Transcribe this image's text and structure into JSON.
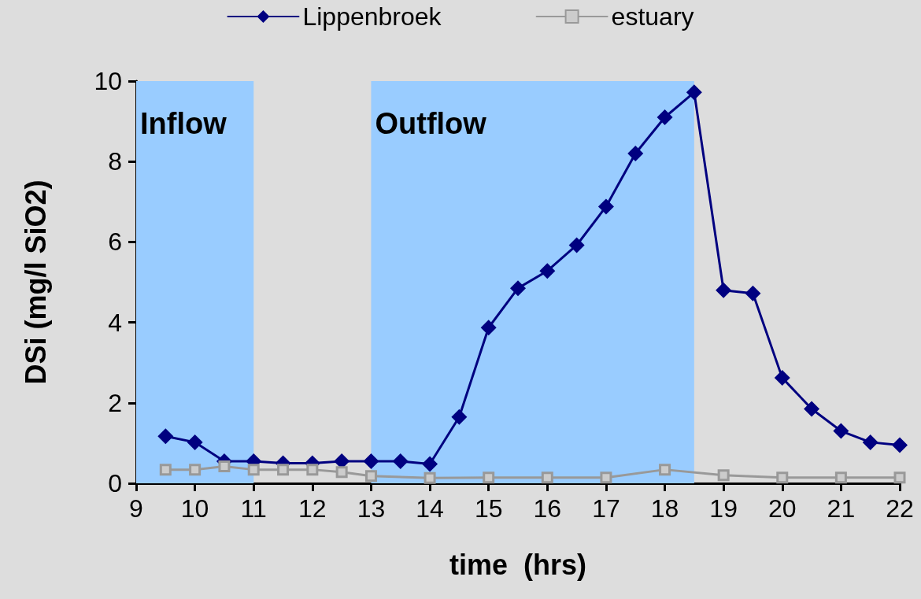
{
  "chart_data": {
    "type": "line",
    "xlabel": "time  (hrs)",
    "ylabel": "DSi (mg/l SiO2)",
    "xlim": [
      9,
      22
    ],
    "xticks": [
      9,
      10,
      11,
      12,
      13,
      14,
      15,
      16,
      17,
      18,
      19,
      20,
      21,
      22
    ],
    "ylim": [
      0,
      10
    ],
    "yticks": [
      0,
      2,
      4,
      6,
      8,
      10
    ],
    "grid": false,
    "legend": "top",
    "bands": [
      {
        "axis": "x",
        "from": 9,
        "to": 11,
        "label": "Inflow",
        "color": "#99ccff"
      },
      {
        "axis": "x",
        "from": 13,
        "to": 18.5,
        "label": "Outflow",
        "color": "#99ccff"
      }
    ],
    "series": [
      {
        "name": "Lippenbroek",
        "color": "#000080",
        "marker": "diamond",
        "x": [
          9.5,
          10,
          10.5,
          11,
          11.5,
          12,
          12.5,
          13,
          13.5,
          14,
          14.5,
          15,
          15.5,
          16,
          16.5,
          17,
          17.5,
          18,
          18.5,
          19,
          19.5,
          20,
          20.5,
          21,
          21.5,
          22
        ],
        "values": [
          1.17,
          1.02,
          0.55,
          0.55,
          0.5,
          0.5,
          0.55,
          0.55,
          0.55,
          0.48,
          1.65,
          3.87,
          4.85,
          5.28,
          5.92,
          6.88,
          8.2,
          9.1,
          9.72,
          4.8,
          4.72,
          2.62,
          1.85,
          1.3,
          1.02,
          0.95
        ]
      },
      {
        "name": "estuary",
        "color": "#999999",
        "marker": "square",
        "x": [
          9.5,
          10,
          10.5,
          11,
          11.5,
          12,
          12.5,
          13,
          14,
          15,
          16,
          17,
          18,
          19,
          20,
          21,
          22
        ],
        "values": [
          0.34,
          0.34,
          0.42,
          0.34,
          0.34,
          0.34,
          0.28,
          0.18,
          0.13,
          0.14,
          0.14,
          0.14,
          0.34,
          0.2,
          0.14,
          0.14,
          0.14
        ]
      }
    ]
  }
}
